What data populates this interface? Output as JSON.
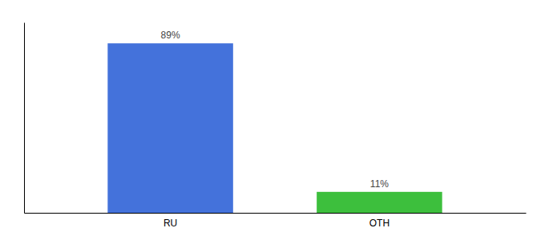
{
  "chart_data": {
    "type": "bar",
    "categories": [
      "RU",
      "OTH"
    ],
    "values": [
      89,
      11
    ],
    "value_labels": [
      "89%",
      "11%"
    ],
    "colors": [
      "#4472db",
      "#3dbf3d"
    ],
    "ylim": [
      0,
      100
    ],
    "data_labels": true,
    "tick_labels": "x"
  }
}
